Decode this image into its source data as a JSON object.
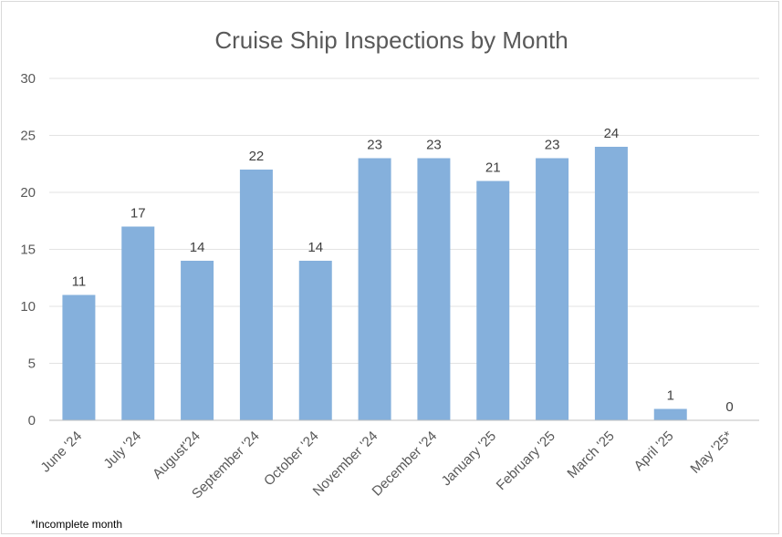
{
  "chart_data": {
    "type": "bar",
    "title": "Cruise Ship Inspections by Month",
    "xlabel": "",
    "ylabel": "",
    "categories": [
      "June '24",
      "July '24",
      "August'24",
      "September '24",
      "October '24",
      "November '24",
      "December '24",
      "January '25",
      "February '25",
      "March '25",
      "April '25",
      "May '25*"
    ],
    "values": [
      11,
      17,
      14,
      22,
      14,
      23,
      23,
      21,
      23,
      24,
      1,
      0
    ],
    "ylim": [
      0,
      30
    ],
    "yticks": [
      0,
      5,
      10,
      15,
      20,
      25,
      30
    ],
    "grid": true,
    "legend": "none",
    "bar_color": "#85b0dc",
    "gridline_color": "#e3e3e3",
    "axis_color": "#bfbfbf"
  },
  "footnote": "*Incomplete month"
}
